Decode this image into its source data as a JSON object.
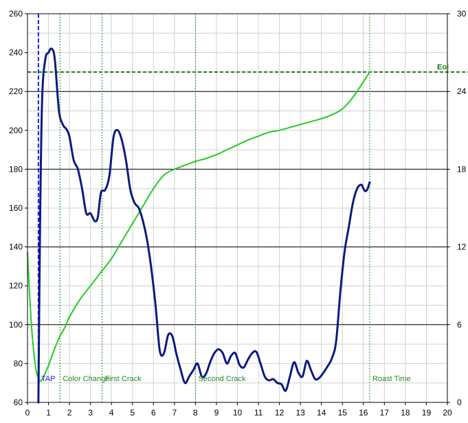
{
  "chart_data": {
    "type": "line",
    "title": "",
    "xlabel": "",
    "ylabel_left": "",
    "ylabel_right": "",
    "xlim": [
      0,
      20
    ],
    "ylim_left": [
      60,
      260
    ],
    "ylim_right": [
      0,
      30
    ],
    "x_ticks": [
      "0",
      "1",
      "2",
      "3",
      "4",
      "5",
      "6",
      "7",
      "8",
      "9",
      "10",
      "11",
      "12",
      "13",
      "14",
      "15",
      "16",
      "17",
      "18",
      "19",
      "20"
    ],
    "y_left_ticks": [
      "60",
      "80",
      "100",
      "120",
      "140",
      "160",
      "180",
      "200",
      "220",
      "240",
      "260"
    ],
    "y_right_ticks": [
      "0",
      "6",
      "12",
      "18",
      "24",
      "30"
    ],
    "grid": true,
    "colors": {
      "bean_temp": "#22cc22",
      "ror": "#0a1a80",
      "tap_line": "#1a1aff",
      "event_line": "#228822",
      "end_line": "#1a7a1a",
      "grid_major": "#000000",
      "grid_minor": "#d0d0d0"
    },
    "series": [
      {
        "axis": "left",
        "color": "#22cc22",
        "x": [
          0.0,
          0.1,
          0.2,
          0.3,
          0.4,
          0.5,
          0.6,
          0.7,
          0.8,
          1.0,
          1.2,
          1.5,
          1.8,
          2.0,
          2.5,
          3.0,
          3.5,
          4.0,
          4.5,
          5.0,
          5.5,
          6.0,
          6.5,
          7.0,
          7.5,
          8.0,
          8.5,
          9.0,
          9.5,
          10.0,
          10.5,
          11.0,
          11.5,
          12.0,
          12.5,
          13.0,
          13.5,
          14.0,
          14.5,
          15.0,
          15.5,
          16.0,
          16.3
        ],
        "values": [
          137,
          116,
          98,
          86,
          77,
          73,
          71,
          72,
          74,
          79,
          85,
          93,
          99,
          104,
          113,
          120,
          127,
          134,
          143,
          152,
          161,
          170,
          177,
          180,
          182,
          184,
          185.5,
          187.5,
          190,
          192.5,
          195,
          197,
          199,
          200,
          201.5,
          203,
          204.5,
          206,
          208,
          211,
          217,
          225,
          230
        ]
      },
      {
        "axis": "right",
        "color": "#0a1a80",
        "x": [
          0.52,
          0.6,
          0.7,
          0.85,
          1.0,
          1.15,
          1.3,
          1.5,
          1.7,
          1.85,
          2.0,
          2.2,
          2.4,
          2.6,
          2.8,
          3.0,
          3.2,
          3.35,
          3.5,
          3.7,
          3.9,
          4.1,
          4.3,
          4.5,
          4.7,
          4.9,
          5.1,
          5.3,
          5.5,
          5.7,
          5.9,
          6.1,
          6.3,
          6.5,
          6.7,
          6.9,
          7.1,
          7.3,
          7.5,
          7.7,
          7.9,
          8.1,
          8.3,
          8.5,
          8.7,
          8.9,
          9.1,
          9.3,
          9.5,
          9.7,
          9.9,
          10.1,
          10.3,
          10.5,
          10.7,
          10.9,
          11.1,
          11.3,
          11.5,
          11.7,
          11.9,
          12.1,
          12.3,
          12.5,
          12.7,
          12.9,
          13.1,
          13.3,
          13.5,
          13.7,
          13.9,
          14.1,
          14.3,
          14.5,
          14.7,
          14.9,
          15.1,
          15.3,
          15.5,
          15.7,
          15.9,
          16.0,
          16.1,
          16.2,
          16.3
        ],
        "values": [
          0,
          14,
          23.5,
          26.5,
          27.0,
          27.3,
          26.5,
          22.5,
          21.4,
          21.1,
          20.5,
          18.7,
          18.0,
          16.5,
          14.6,
          14.6,
          14.0,
          14.3,
          16.2,
          16.4,
          17.5,
          20.5,
          21.0,
          20.2,
          18.6,
          16.4,
          15.4,
          15.0,
          14.0,
          12.5,
          10.3,
          7.5,
          4.0,
          3.8,
          5.2,
          5.1,
          3.7,
          2.5,
          1.5,
          2.0,
          2.5,
          3.0,
          2.0,
          2.2,
          3.1,
          3.8,
          4.1,
          3.8,
          3.0,
          3.6,
          3.8,
          2.9,
          2.7,
          3.3,
          3.8,
          3.9,
          3.0,
          2.0,
          1.7,
          1.8,
          1.5,
          1.4,
          0.9,
          2.0,
          3.1,
          2.3,
          2.0,
          3.2,
          2.5,
          1.8,
          1.9,
          2.3,
          2.8,
          3.4,
          4.7,
          8.5,
          11.6,
          13.5,
          15.4,
          16.5,
          16.8,
          16.5,
          16.3,
          16.5,
          17.0
        ]
      }
    ],
    "events": [
      {
        "label": "TAP",
        "x": 0.52,
        "color": "#1a1aff",
        "style": "dashed"
      },
      {
        "label": "Color Change",
        "x": 1.55,
        "color": "#228822",
        "style": "dotted"
      },
      {
        "label": "First Crack",
        "x": 3.55,
        "color": "#228822",
        "style": "dotted"
      },
      {
        "label": "Second Crack",
        "x": 8.0,
        "color": "#228822",
        "style": "dotted"
      },
      {
        "label": "Roast Time",
        "x": 16.3,
        "color": "#228822",
        "style": "dotted"
      }
    ],
    "end_line": {
      "label": "Eol",
      "y": 230,
      "color": "#1a7a1a",
      "style": "dashed"
    }
  }
}
